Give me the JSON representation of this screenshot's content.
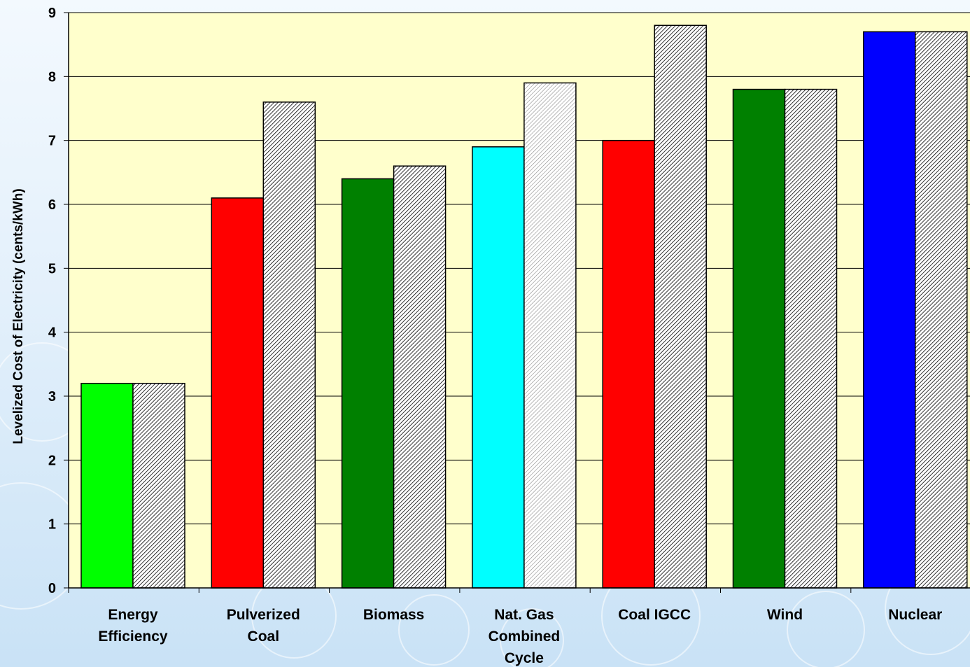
{
  "chart_data": {
    "type": "bar",
    "title": "",
    "xlabel": "",
    "ylabel": "Levelized Cost of Electricity (cents/kWh)",
    "ylim": [
      0,
      9
    ],
    "yticks": [
      0,
      1,
      2,
      3,
      4,
      5,
      6,
      7,
      8,
      9
    ],
    "grid": true,
    "legend": "none",
    "categories": [
      [
        "Energy",
        "Efficiency"
      ],
      [
        "Pulverized",
        "Coal"
      ],
      [
        "Biomass"
      ],
      [
        "Nat. Gas",
        "Combined",
        "Cycle"
      ],
      [
        "Coal IGCC"
      ],
      [
        "Wind"
      ],
      [
        "Nuclear"
      ]
    ],
    "series": [
      {
        "values": [
          3.2,
          6.1,
          6.4,
          6.9,
          7.0,
          7.8,
          8.7
        ],
        "colors": [
          "#00ff00",
          "#ff0000",
          "#008000",
          "#00ffff",
          "#ff0000",
          "#008000",
          "#0000ff"
        ],
        "pattern": "solid"
      },
      {
        "values": [
          3.2,
          7.6,
          6.6,
          7.9,
          8.8,
          7.8,
          8.7
        ],
        "colors": [
          "#c0c0c0",
          "#a0a0a0",
          "#a0a0a0",
          "#e8e8e8",
          "#a0a0a0",
          "#a0a0a0",
          "#a0a0a0"
        ],
        "pattern": "hatched"
      }
    ],
    "plot_background": "#ffffcc"
  }
}
